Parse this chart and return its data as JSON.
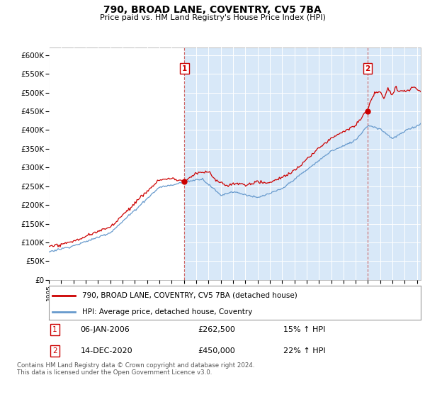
{
  "title": "790, BROAD LANE, COVENTRY, CV5 7BA",
  "subtitle": "Price paid vs. HM Land Registry's House Price Index (HPI)",
  "bg_color_left": "#ffffff",
  "bg_color_right": "#dce8f8",
  "red_color": "#cc0000",
  "blue_color": "#6699cc",
  "dashed_color": "#cc6666",
  "ylim": [
    0,
    620000
  ],
  "yticks": [
    0,
    50000,
    100000,
    150000,
    200000,
    250000,
    300000,
    350000,
    400000,
    450000,
    500000,
    550000,
    600000
  ],
  "sale1_x": 2006.04,
  "sale1_y": 262500,
  "sale1_label": "1",
  "sale1_date": "06-JAN-2006",
  "sale1_price": "£262,500",
  "sale1_hpi": "15% ↑ HPI",
  "sale2_x": 2020.96,
  "sale2_y": 450000,
  "sale2_label": "2",
  "sale2_date": "14-DEC-2020",
  "sale2_price": "£450,000",
  "sale2_hpi": "22% ↑ HPI",
  "legend_line1": "790, BROAD LANE, COVENTRY, CV5 7BA (detached house)",
  "legend_line2": "HPI: Average price, detached house, Coventry",
  "footer": "Contains HM Land Registry data © Crown copyright and database right 2024.\nThis data is licensed under the Open Government Licence v3.0.",
  "xlim_left": 1995,
  "xlim_right": 2025.3
}
